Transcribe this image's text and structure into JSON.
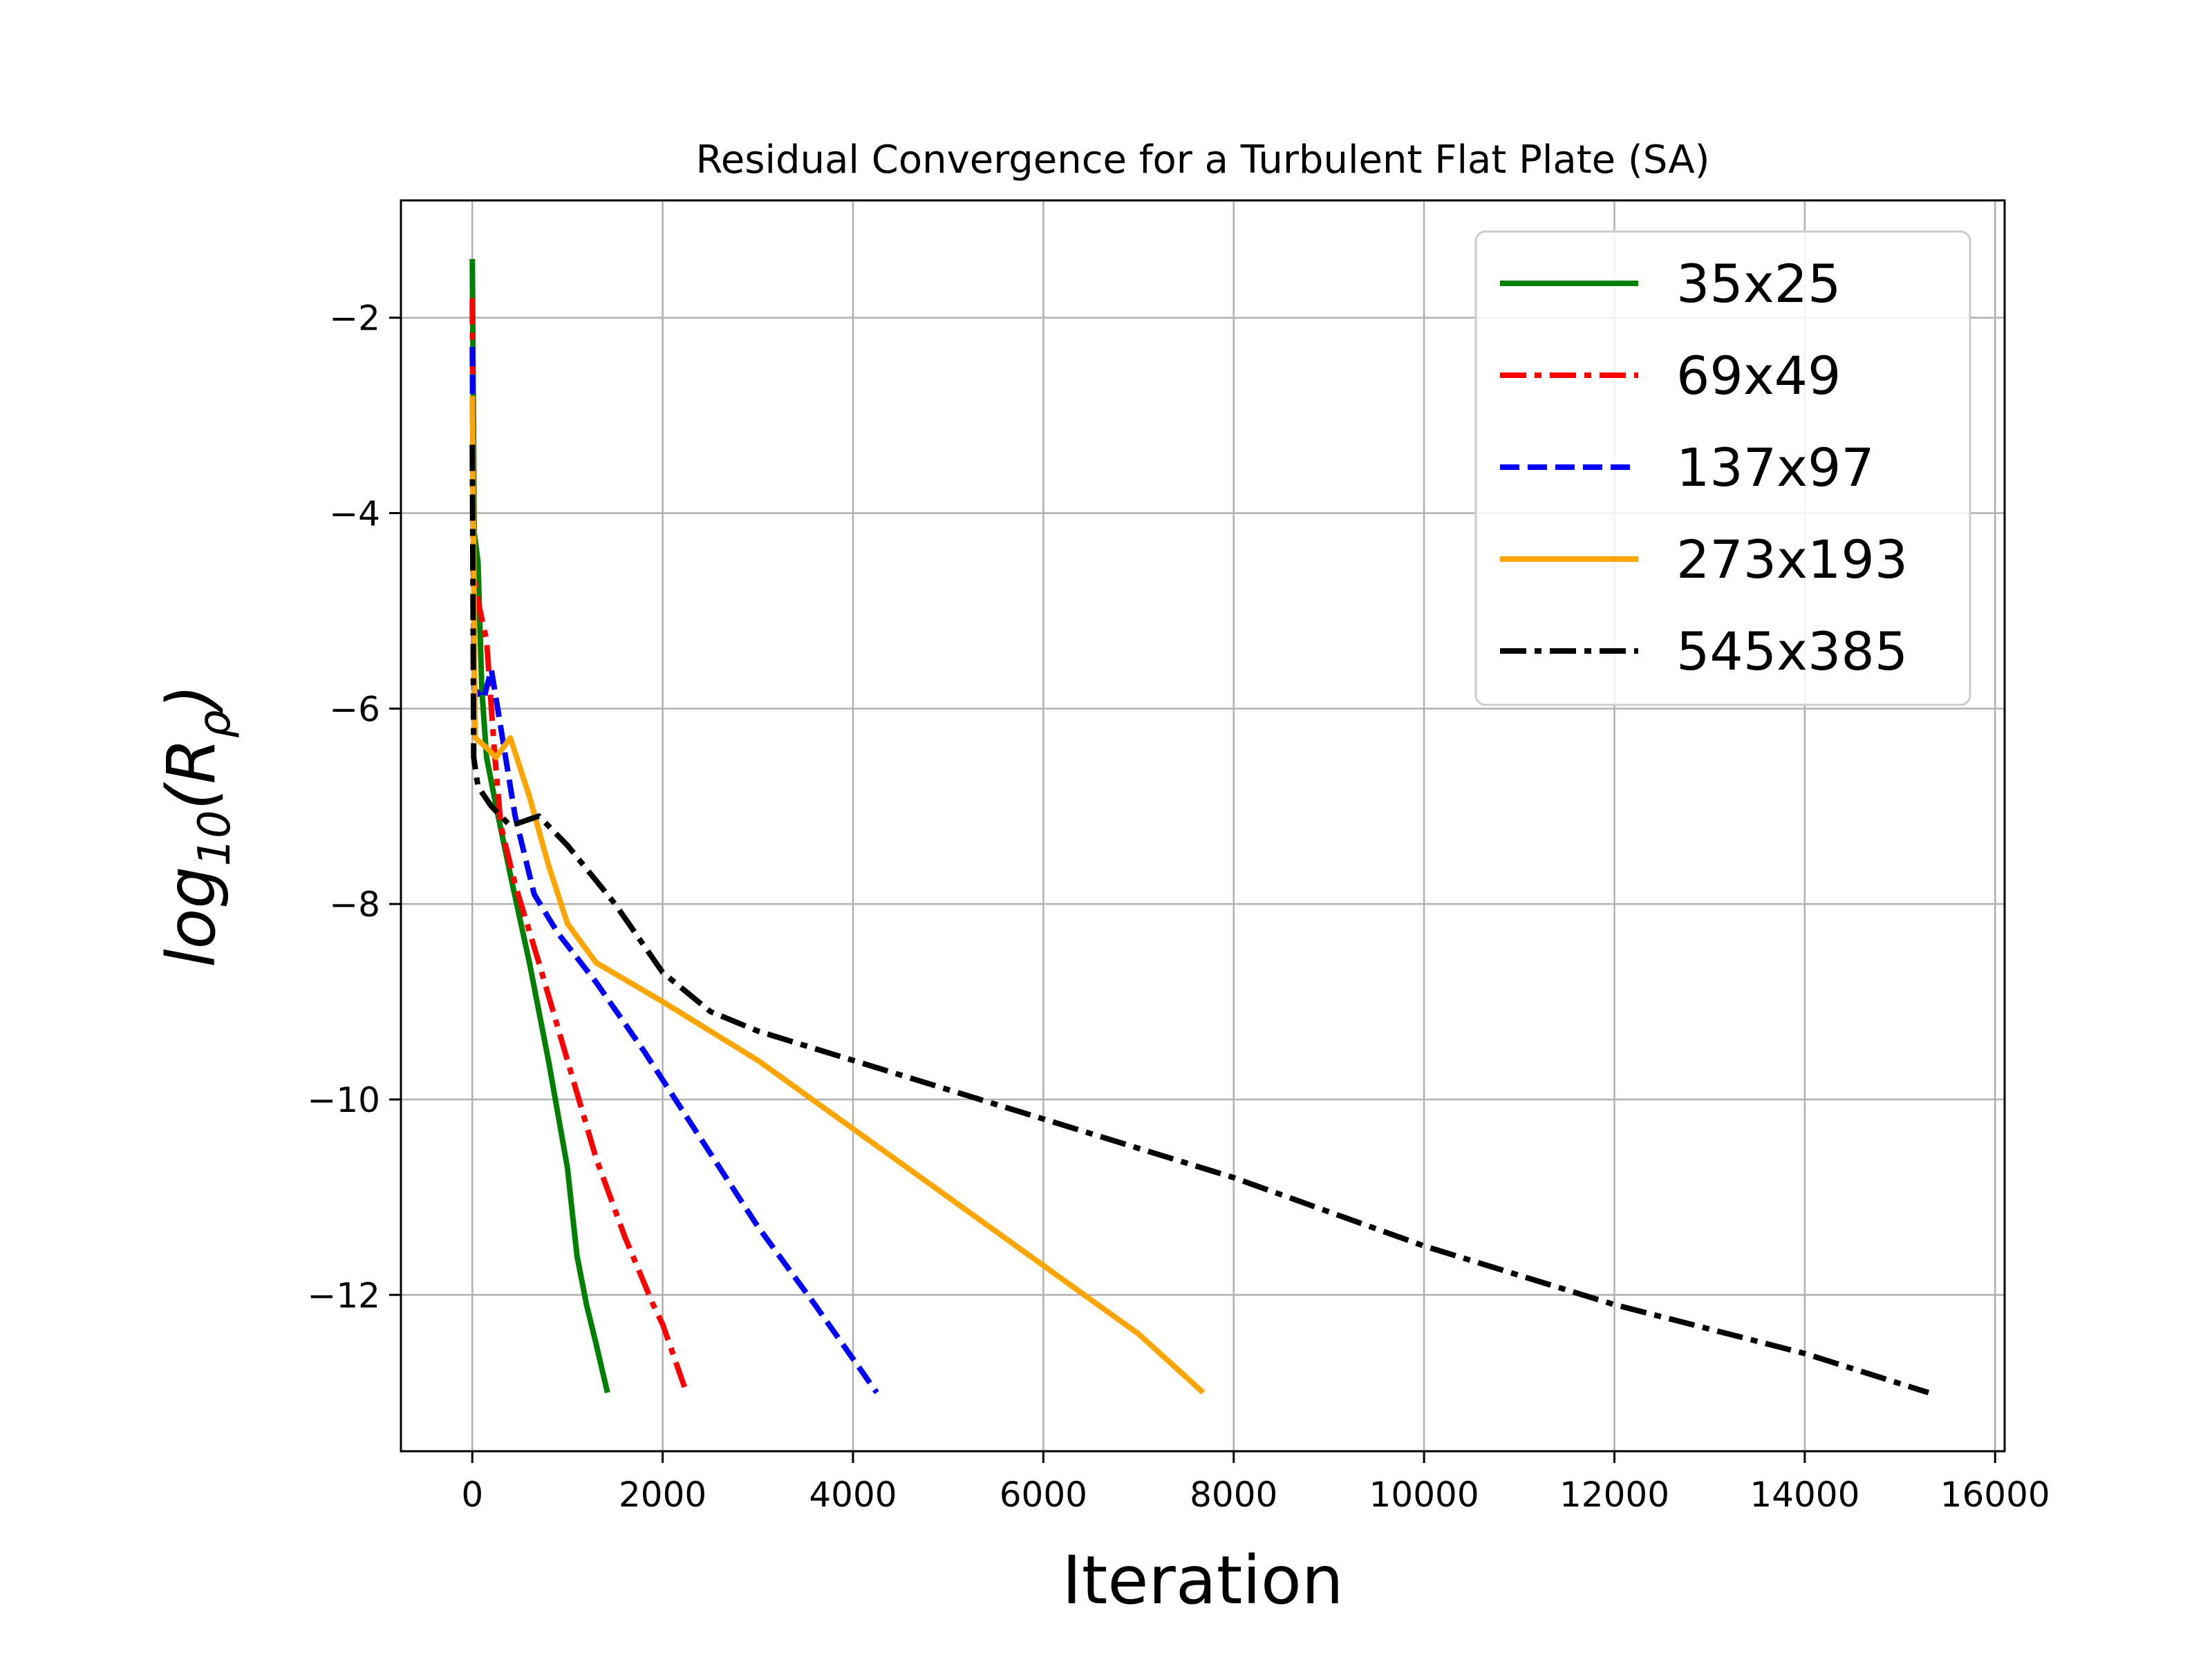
{
  "chart_data": {
    "type": "line",
    "title": "Residual Convergence for a Turbulent Flat Plate (SA)",
    "xlabel": "Iteration",
    "ylabel": "log10(Rρ)",
    "xlim": [
      -750,
      16100
    ],
    "ylim": [
      -13.6,
      -0.8
    ],
    "xticks": [
      0,
      2000,
      4000,
      6000,
      8000,
      10000,
      12000,
      14000,
      16000
    ],
    "yticks": [
      -2,
      -4,
      -6,
      -8,
      -10,
      -12
    ],
    "xtick_labels": [
      "0",
      "2000",
      "4000",
      "6000",
      "8000",
      "10000",
      "12000",
      "14000",
      "16000"
    ],
    "ytick_labels": [
      "−2",
      "−4",
      "−6",
      "−8",
      "−10",
      "−12"
    ],
    "grid": true,
    "legend_position": "top-right",
    "series": [
      {
        "name": "35x25",
        "color": "#008000",
        "dash": "solid",
        "points": [
          [
            0,
            -1.4
          ],
          [
            20,
            -4.2
          ],
          [
            60,
            -4.5
          ],
          [
            100,
            -5.8
          ],
          [
            150,
            -6.5
          ],
          [
            250,
            -7.0
          ],
          [
            400,
            -7.7
          ],
          [
            600,
            -8.6
          ],
          [
            800,
            -9.6
          ],
          [
            1000,
            -10.7
          ],
          [
            1100,
            -11.6
          ],
          [
            1200,
            -12.1
          ],
          [
            1300,
            -12.5
          ],
          [
            1420,
            -13.0
          ]
        ]
      },
      {
        "name": "69x49",
        "color": "#ff0000",
        "dash": "dashdot",
        "points": [
          [
            0,
            -1.8
          ],
          [
            10,
            -4.6
          ],
          [
            60,
            -4.9
          ],
          [
            150,
            -5.3
          ],
          [
            230,
            -6.4
          ],
          [
            300,
            -7.2
          ],
          [
            450,
            -7.8
          ],
          [
            700,
            -8.6
          ],
          [
            1000,
            -9.6
          ],
          [
            1300,
            -10.6
          ],
          [
            1600,
            -11.4
          ],
          [
            1900,
            -12.1
          ],
          [
            2000,
            -12.3
          ],
          [
            2250,
            -13.0
          ]
        ]
      },
      {
        "name": "137x97",
        "color": "#0000ff",
        "dash": "dashed",
        "points": [
          [
            0,
            -2.3
          ],
          [
            20,
            -5.8
          ],
          [
            120,
            -5.9
          ],
          [
            200,
            -5.6
          ],
          [
            300,
            -6.2
          ],
          [
            450,
            -7.1
          ],
          [
            650,
            -7.9
          ],
          [
            900,
            -8.3
          ],
          [
            1300,
            -8.8
          ],
          [
            1800,
            -9.5
          ],
          [
            2400,
            -10.4
          ],
          [
            3000,
            -11.3
          ],
          [
            3600,
            -12.1
          ],
          [
            4250,
            -13.0
          ]
        ]
      },
      {
        "name": "273x193",
        "color": "#ffa500",
        "dash": "solid",
        "points": [
          [
            0,
            -2.8
          ],
          [
            30,
            -6.3
          ],
          [
            150,
            -6.4
          ],
          [
            250,
            -6.5
          ],
          [
            400,
            -6.3
          ],
          [
            600,
            -6.9
          ],
          [
            800,
            -7.6
          ],
          [
            1000,
            -8.2
          ],
          [
            1300,
            -8.6
          ],
          [
            2000,
            -9.0
          ],
          [
            3000,
            -9.6
          ],
          [
            4000,
            -10.3
          ],
          [
            5000,
            -11.0
          ],
          [
            6000,
            -11.7
          ],
          [
            7000,
            -12.4
          ],
          [
            7680,
            -13.0
          ]
        ]
      },
      {
        "name": "545x385",
        "color": "#000000",
        "dash": "dashdot",
        "points": [
          [
            0,
            -3.3
          ],
          [
            15,
            -6.5
          ],
          [
            60,
            -6.8
          ],
          [
            200,
            -7.0
          ],
          [
            400,
            -7.2
          ],
          [
            700,
            -7.1
          ],
          [
            1000,
            -7.4
          ],
          [
            1500,
            -8.0
          ],
          [
            2000,
            -8.7
          ],
          [
            2500,
            -9.1
          ],
          [
            3000,
            -9.3
          ],
          [
            4000,
            -9.6
          ],
          [
            5000,
            -9.9
          ],
          [
            6000,
            -10.2
          ],
          [
            8000,
            -10.8
          ],
          [
            10000,
            -11.5
          ],
          [
            12000,
            -12.1
          ],
          [
            14000,
            -12.6
          ],
          [
            15300,
            -13.0
          ]
        ]
      }
    ]
  }
}
